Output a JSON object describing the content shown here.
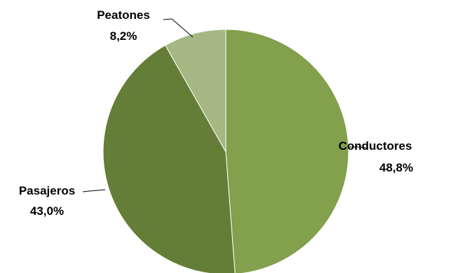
{
  "chart_data": {
    "type": "pie",
    "title": "",
    "start_angle_deg": 0,
    "direction": "clockwise",
    "slices": [
      {
        "label": "Conductores",
        "value": 48.8,
        "value_label": "48,8%",
        "color": "#83a04d"
      },
      {
        "label": "Pasajeros",
        "value": 43.0,
        "value_label": "43,0%",
        "color": "#647e37"
      },
      {
        "label": "Peatones",
        "value": 8.2,
        "value_label": "8,2%",
        "color": "#a5b884"
      }
    ]
  }
}
